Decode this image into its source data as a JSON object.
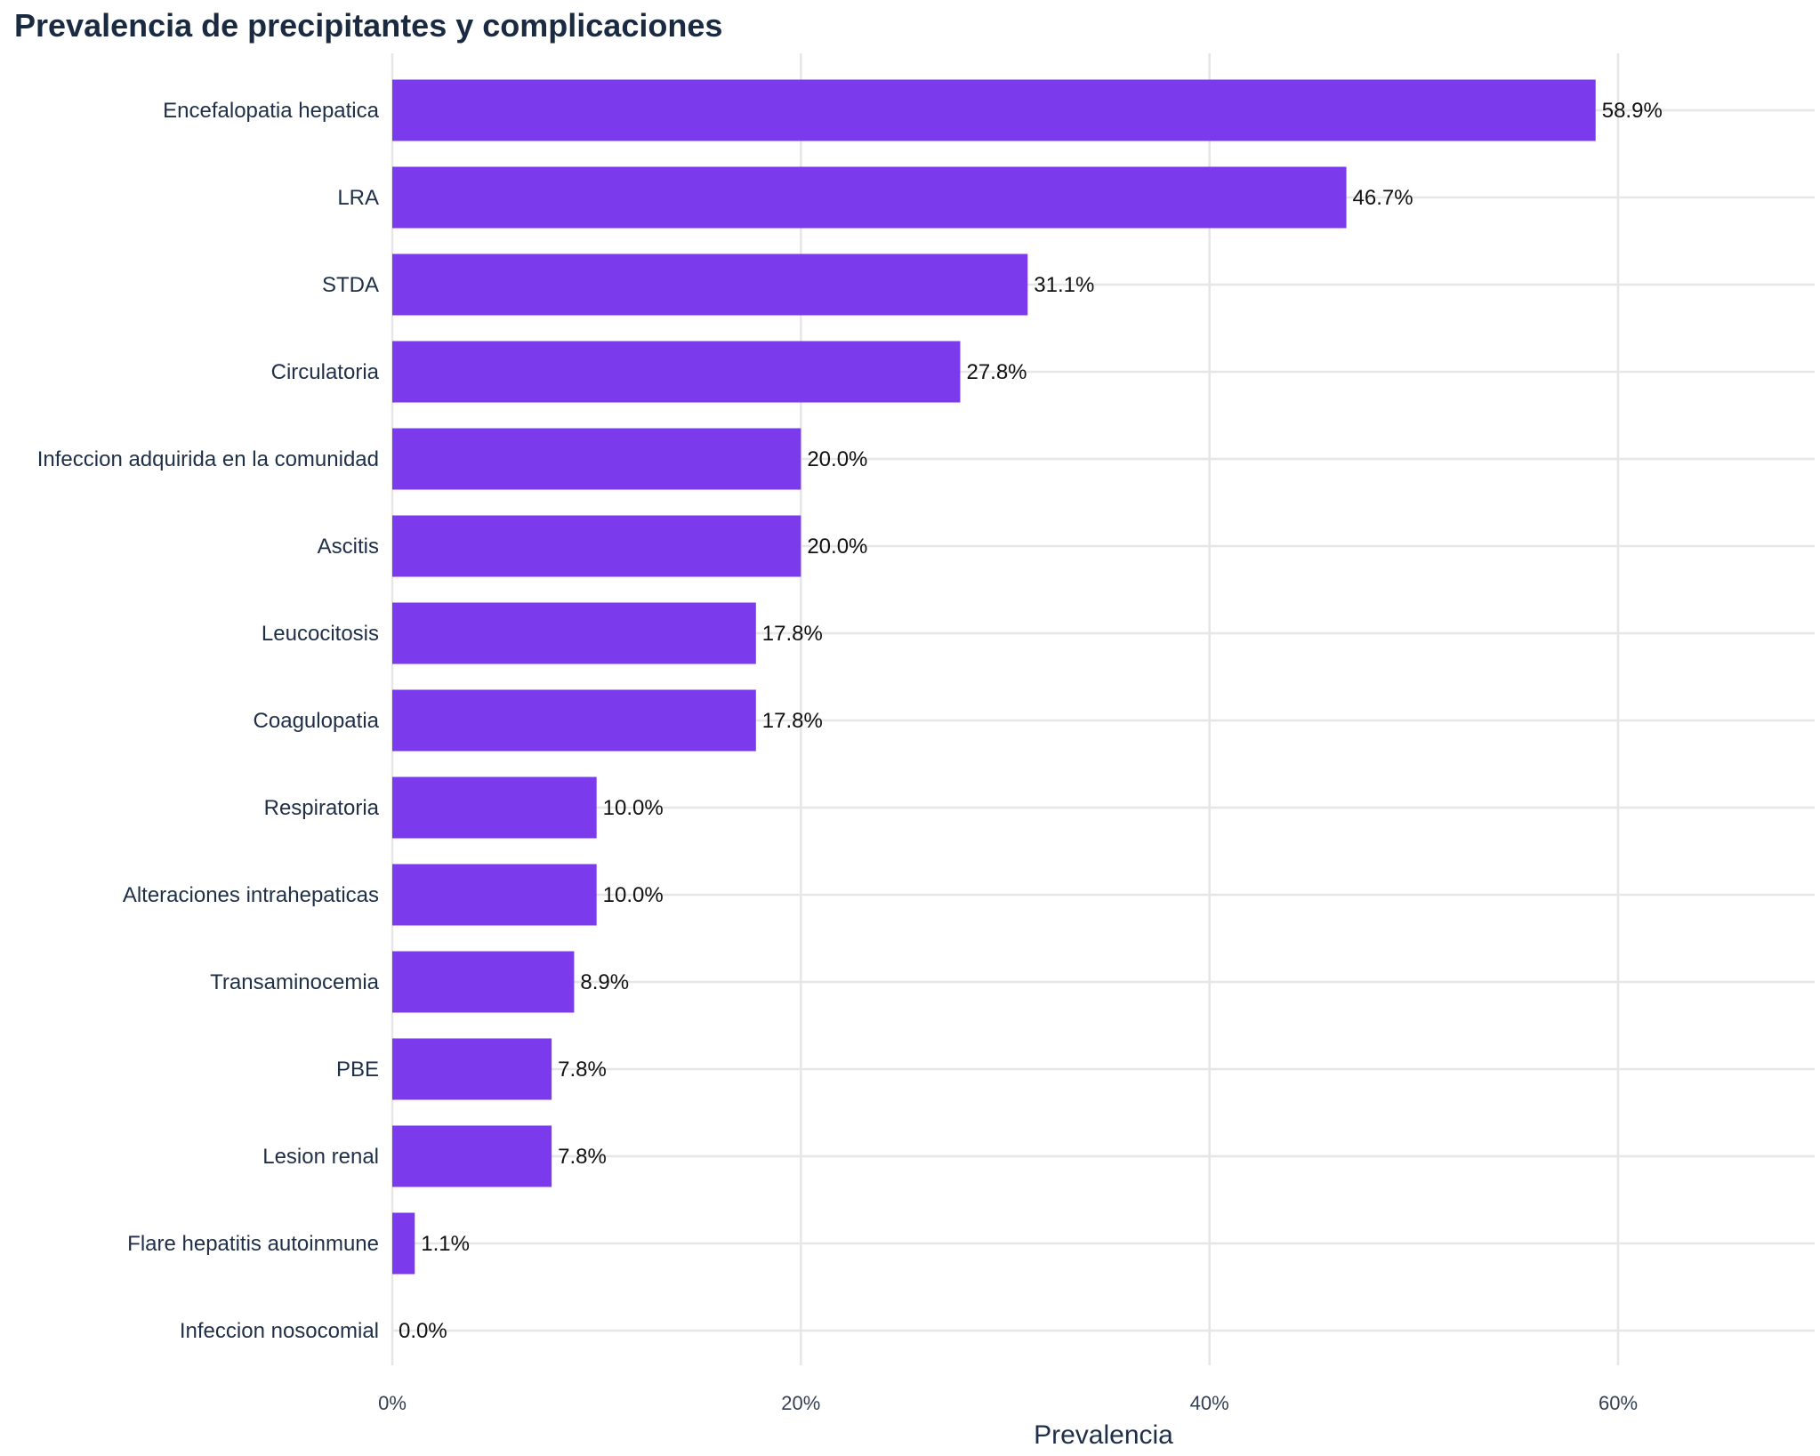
{
  "chart_data": {
    "type": "bar",
    "orientation": "horizontal",
    "title": "Prevalencia de precipitantes y complicaciones",
    "xlabel": "Prevalencia",
    "ylabel": "",
    "xlim": [
      0,
      70
    ],
    "x_ticks": [
      0,
      20,
      40,
      60
    ],
    "x_tick_labels": [
      "0%",
      "20%",
      "40%",
      "60%"
    ],
    "grid": true,
    "bar_color": "#7c3aed",
    "categories": [
      "Encefalopatia hepatica",
      "LRA",
      "STDA",
      "Circulatoria",
      "Infeccion adquirida en la comunidad",
      "Ascitis",
      "Leucocitosis",
      "Coagulopatia",
      "Respiratoria",
      "Alteraciones intrahepaticas",
      "Transaminocemia",
      "PBE",
      "Lesion renal",
      "Flare hepatitis autoinmune",
      "Infeccion nosocomial"
    ],
    "values": [
      58.9,
      46.7,
      31.1,
      27.8,
      20.0,
      20.0,
      17.8,
      17.8,
      10.0,
      10.0,
      8.9,
      7.8,
      7.8,
      1.1,
      0.0
    ],
    "value_labels": [
      "58.9%",
      "46.7%",
      "31.1%",
      "27.8%",
      "20.0%",
      "20.0%",
      "17.8%",
      "17.8%",
      "10.0%",
      "10.0%",
      "8.9%",
      "7.8%",
      "7.8%",
      "1.1%",
      "0.0%"
    ]
  }
}
